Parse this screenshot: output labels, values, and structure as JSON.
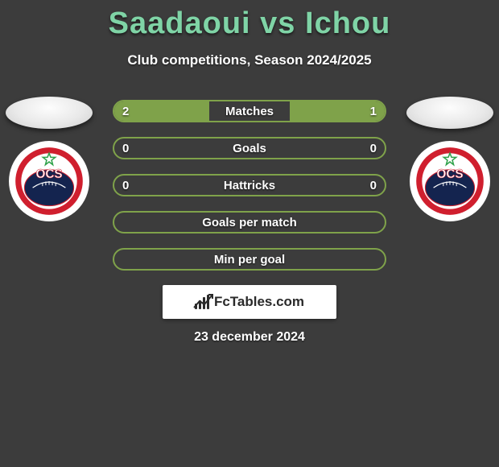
{
  "title_parts": {
    "p1": "Saadaoui",
    "vs": "vs",
    "p2": "Ichou"
  },
  "title_color": "#7fd4a6",
  "subtitle": "Club competitions, Season 2024/2025",
  "date": "23 december 2024",
  "watermark_text": "FcTables.com",
  "colors": {
    "background": "#3c3c3c",
    "bar_border": "#7fa24a",
    "bar_fill_left": "#7fa24a",
    "bar_fill_right": "#7fa24a",
    "bar_text": "#ffffff"
  },
  "badge": {
    "ring_outer": "#ffffff",
    "ring_accent": "#d01f2e",
    "field": "#14244f",
    "label": "OCS",
    "star_color": "#2ea24a"
  },
  "bars": [
    {
      "label": "Matches",
      "left": "2",
      "right": "1",
      "left_pct": 0.35,
      "right_pct": 0.35
    },
    {
      "label": "Goals",
      "left": "0",
      "right": "0",
      "left_pct": 0.0,
      "right_pct": 0.0
    },
    {
      "label": "Hattricks",
      "left": "0",
      "right": "0",
      "left_pct": 0.0,
      "right_pct": 0.0
    },
    {
      "label": "Goals per match",
      "left": "",
      "right": "",
      "left_pct": 0.0,
      "right_pct": 0.0
    },
    {
      "label": "Min per goal",
      "left": "",
      "right": "",
      "left_pct": 0.0,
      "right_pct": 0.0
    }
  ]
}
